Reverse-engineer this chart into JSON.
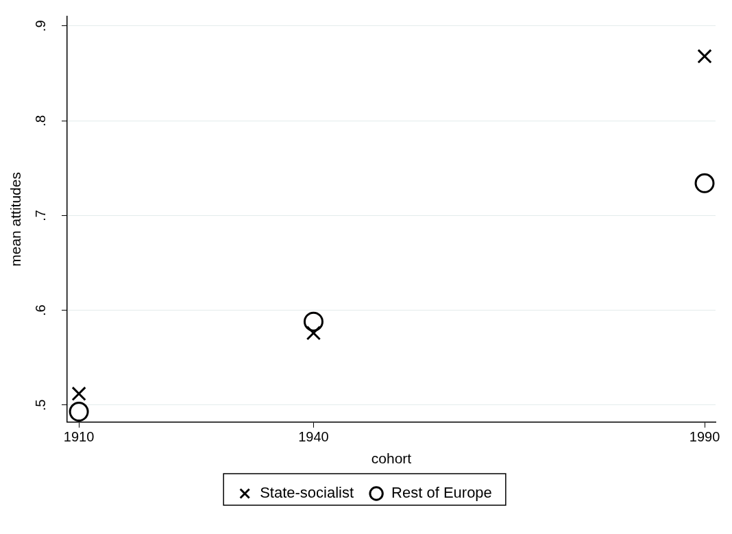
{
  "chart_data": {
    "type": "scatter",
    "xlabel": "cohort",
    "ylabel": "mean attitudes",
    "xlim": [
      1908.5,
      1991.4
    ],
    "xticks": [
      1910,
      1940,
      1990
    ],
    "ylim": [
      0.482,
      0.91
    ],
    "yticks": [
      {
        "value": 0.5,
        "label": ".5"
      },
      {
        "value": 0.6,
        "label": ".6"
      },
      {
        "value": 0.7,
        "label": ".7"
      },
      {
        "value": 0.8,
        "label": ".8"
      },
      {
        "value": 0.9,
        "label": ".9"
      }
    ],
    "grid": "y",
    "legend": "bottom",
    "x": [
      1910,
      1940,
      1990
    ],
    "series": [
      {
        "name": "State-socialist",
        "color": "#000000",
        "marker": "cross",
        "values": [
          0.512,
          0.576,
          0.868
        ]
      },
      {
        "name": "Rest of Europe",
        "color": "#000000",
        "marker": "circle",
        "values": [
          0.493,
          0.588,
          0.734
        ]
      }
    ]
  }
}
